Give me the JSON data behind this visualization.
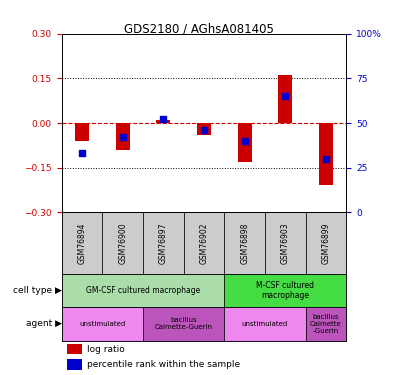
{
  "title": "GDS2180 / AGhsA081405",
  "samples": [
    "GSM76894",
    "GSM76900",
    "GSM76897",
    "GSM76902",
    "GSM76898",
    "GSM76903",
    "GSM76899"
  ],
  "log_ratios": [
    -0.06,
    -0.09,
    0.01,
    -0.04,
    -0.13,
    0.16,
    -0.21
  ],
  "percentile_ranks": [
    33,
    42,
    52,
    46,
    40,
    65,
    30
  ],
  "ylim_left": [
    -0.3,
    0.3
  ],
  "ylim_right": [
    0,
    100
  ],
  "yticks_left": [
    -0.3,
    -0.15,
    0,
    0.15,
    0.3
  ],
  "yticks_right": [
    0,
    25,
    50,
    75,
    100
  ],
  "dotted_lines_black": [
    -0.15,
    0.15
  ],
  "cell_types": [
    {
      "label": "GM-CSF cultured macrophage",
      "start": 0,
      "end": 4,
      "color": "#aaddaa"
    },
    {
      "label": "M-CSF cultured\nmacrophage",
      "start": 4,
      "end": 7,
      "color": "#44dd44"
    }
  ],
  "agents": [
    {
      "label": "unstimulated",
      "start": 0,
      "end": 2,
      "color": "#ee88ee"
    },
    {
      "label": "bacillus\nCalmette-Guerin",
      "start": 2,
      "end": 4,
      "color": "#bb55bb"
    },
    {
      "label": "unstimulated",
      "start": 4,
      "end": 6,
      "color": "#ee88ee"
    },
    {
      "label": "bacillus\nCalmette\n-Guerin",
      "start": 6,
      "end": 7,
      "color": "#bb55bb"
    }
  ],
  "bar_color": "#cc0000",
  "dot_color": "#0000cc",
  "zero_line_color": "#cc0000",
  "bar_width": 0.35,
  "dot_size": 18,
  "tick_color_left": "#cc0000",
  "tick_color_right": "#0000cc",
  "gsm_bg_color": "#cccccc"
}
